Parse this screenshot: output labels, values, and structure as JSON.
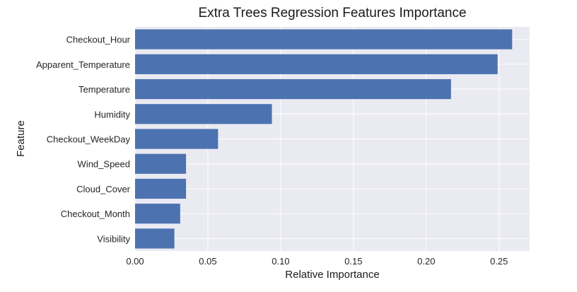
{
  "chart_data": {
    "type": "bar",
    "orientation": "horizontal",
    "title": "Extra Trees Regression Features Importance",
    "xlabel": "Relative Importance",
    "ylabel": "Feature",
    "categories": [
      "Checkout_Hour",
      "Apparent_Temperature",
      "Temperature",
      "Humidity",
      "Checkout_WeekDay",
      "Wind_Speed",
      "Cloud_Cover",
      "Checkout_Month",
      "Visibility"
    ],
    "values": [
      0.259,
      0.249,
      0.217,
      0.094,
      0.057,
      0.035,
      0.035,
      0.031,
      0.027
    ],
    "xlim": [
      0,
      0.271
    ],
    "xticks": [
      "0.00",
      "0.05",
      "0.10",
      "0.15",
      "0.20",
      "0.25"
    ],
    "grid": true,
    "colors": {
      "bar": "#4c72b0",
      "background": "#eaeaf2",
      "grid": "#ffffff"
    }
  }
}
